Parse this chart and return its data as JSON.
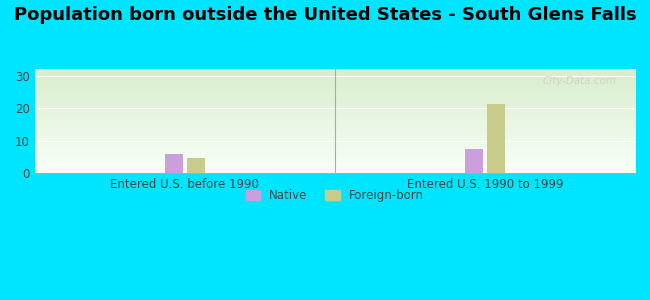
{
  "title": "Population born outside the United States - South Glens Falls",
  "groups": [
    "Entered U.S. before 1990",
    "Entered U.S. 1990 to 1999"
  ],
  "native_values": [
    6.0,
    7.5
  ],
  "foreign_values": [
    4.5,
    21.3
  ],
  "native_color": "#c9a0dc",
  "foreign_color": "#c8cc8a",
  "background_color": "#00e5ff",
  "plot_bg_top": "#f8fff8",
  "plot_bg_bottom": "#d8edcc",
  "ylim": [
    0,
    32
  ],
  "yticks": [
    0,
    10,
    20,
    30
  ],
  "bar_width": 0.12,
  "group_centers": [
    1,
    3
  ],
  "xlim": [
    0,
    4
  ],
  "legend_native": "Native",
  "legend_foreign": "Foreign-born",
  "watermark": "City-Data.com",
  "title_fontsize": 13,
  "tick_fontsize": 8.5,
  "label_fontsize": 8.5
}
